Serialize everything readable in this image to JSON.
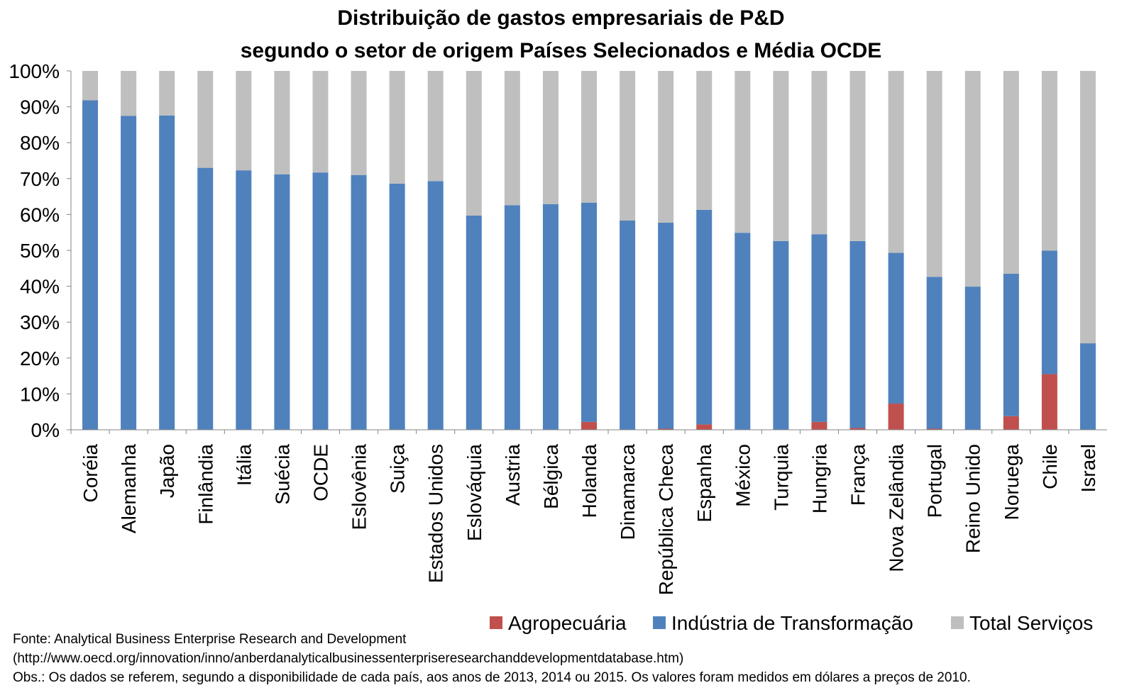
{
  "chart_data": {
    "type": "bar",
    "stacked": true,
    "percent_stacked": true,
    "title": [
      "Distribuição de gastos empresariais de P&D",
      "segundo o setor de origem Países Selecionados e Média OCDE"
    ],
    "categories": [
      "Coréia",
      "Alemanha",
      "Japão",
      "Finlândia",
      "Itália",
      "Suécia",
      "OCDE",
      "Eslovênia",
      "Suiça",
      "Estados Unidos",
      "Eslováquia",
      "Austria",
      "Bélgica",
      "Holanda",
      "Dinamarca",
      "República Checa",
      "Espanha",
      "México",
      "Turquia",
      "Hungria",
      "França",
      "Nova Zelândia",
      "Portugal",
      "Reino Unido",
      "Noruega",
      "Chile",
      "Israel"
    ],
    "series": [
      {
        "name": "Agropecuária",
        "color": "#C0504D",
        "values": [
          0,
          0,
          0,
          0,
          0,
          0,
          0,
          0,
          0,
          0,
          0,
          0,
          0,
          2.2,
          0,
          0.3,
          1.5,
          0,
          0,
          2.2,
          0.5,
          7.3,
          0.3,
          0,
          3.8,
          15.5,
          0
        ]
      },
      {
        "name": "Indústria de Transformação",
        "color": "#4F81BD",
        "values": [
          91.8,
          87.5,
          87.6,
          73.0,
          72.3,
          71.2,
          71.7,
          71.0,
          68.6,
          69.3,
          59.7,
          62.6,
          62.9,
          61.1,
          58.3,
          57.4,
          59.8,
          54.9,
          52.6,
          52.3,
          52.1,
          42.0,
          42.3,
          39.9,
          39.7,
          34.4,
          24.1
        ]
      },
      {
        "name": "Total Serviços",
        "color": "#BFBFBF",
        "values": [
          8.2,
          12.5,
          12.4,
          27.0,
          27.7,
          28.8,
          28.3,
          29.0,
          31.4,
          30.7,
          40.3,
          37.4,
          37.1,
          36.7,
          41.7,
          42.3,
          38.7,
          45.1,
          47.4,
          45.5,
          47.4,
          50.7,
          57.4,
          60.1,
          56.5,
          50.1,
          75.9
        ]
      }
    ],
    "ylim": [
      0,
      100
    ],
    "yticks": [
      "0%",
      "10%",
      "20%",
      "30%",
      "40%",
      "50%",
      "60%",
      "70%",
      "80%",
      "90%",
      "100%"
    ],
    "legend_position": "bottom-right",
    "grid": false
  },
  "notes": [
    "Fonte: Analytical Business Enterprise Research and Development",
    "(http://www.oecd.org/innovation/inno/anberdanalyticalbusinessenterpriseresearchanddevelopmentdatabase.htm)",
    "Obs.: Os dados se referem, segundo a disponibilidade de cada país, aos anos de 2013, 2014 ou 2015. Os valores foram medidos em dólares a preços de 2010."
  ]
}
